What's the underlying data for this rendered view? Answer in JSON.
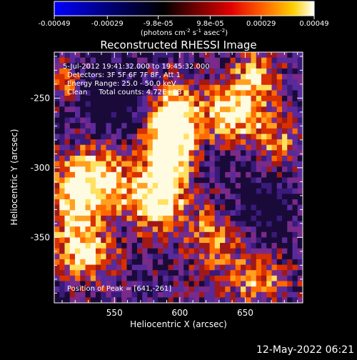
{
  "colorbar": {
    "tick_labels": [
      "-0.00049",
      "-0.00029",
      "-9.8e-05",
      "9.8e-05",
      "0.00029",
      "0.00049"
    ],
    "tick_values": [
      -0.00049,
      -0.00029,
      -9.8e-05,
      9.8e-05,
      0.00029,
      0.00049
    ],
    "range": [
      -0.00049,
      0.00049
    ],
    "unit_main": "(photons cm",
    "unit_exp1": "-2",
    "unit_mid": " s",
    "unit_exp2": "-1",
    "unit_mid2": " asec",
    "unit_exp3": "-2",
    "unit_end": ")",
    "gradient_colors": [
      "#0000ff",
      "#000080",
      "#000000",
      "#800000",
      "#ff0000",
      "#ff8000",
      "#ffff00",
      "#ffffff"
    ]
  },
  "footer": {
    "timestamp": "12-May-2022 06:21"
  },
  "chart_data": {
    "type": "heatmap",
    "title": "Reconstructed RHESSI Image",
    "xlabel": "Heliocentric X (arcsec)",
    "ylabel": "Heliocentric Y (arcsec)",
    "xlim": [
      504,
      694
    ],
    "ylim": [
      -397,
      -217
    ],
    "xticks": [
      550,
      600,
      650
    ],
    "xtick_labels": [
      "550",
      "600",
      "650"
    ],
    "yticks": [
      -250,
      -300,
      -350
    ],
    "ytick_labels": [
      "-250",
      "-300",
      "-350"
    ],
    "annotations": [
      "5-Jul-2012 19:41:32.000 to 19:45:32.000",
      "Detectors: 3F 5F 6F 7F 8F, Att 1",
      "Energy Range: 25.0 - 50.0 keV",
      "Clean     Total counts: 4.72E+03"
    ],
    "peak_label": "Position of Peak = [641,-261]",
    "peak": [
      641,
      -261
    ],
    "colormap": [
      "#1a0a3a",
      "#3a1a7a",
      "#5a2a9a",
      "#7a2a8a",
      "#a01818",
      "#d83000",
      "#ff6a00",
      "#ffa020",
      "#ffe060",
      "#fffbe0"
    ],
    "grid_cols": 48,
    "grid_rows": 46,
    "grid": false,
    "legend": "none"
  }
}
